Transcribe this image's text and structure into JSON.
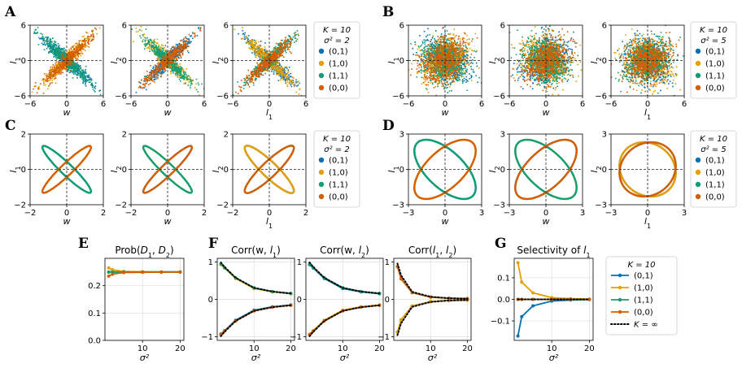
{
  "figure": {
    "panel_letters": [
      "A",
      "B",
      "C",
      "D",
      "E",
      "F",
      "G"
    ]
  },
  "colors": {
    "(0,1)": "#0072b2",
    "(1,0)": "#e69f00",
    "(1,1)": "#119e73",
    "(0,0)": "#d55e00",
    "K_inf": "#000000"
  },
  "legends": {
    "A": {
      "k_label": "K = 10",
      "sigma_label": "σ² = 2",
      "entries": [
        "(0,1)",
        "(1,0)",
        "(1,1)",
        "(0,0)"
      ]
    },
    "B": {
      "k_label": "K = 10",
      "sigma_label": "σ² = 5",
      "entries": [
        "(0,1)",
        "(1,0)",
        "(1,1)",
        "(0,0)"
      ]
    },
    "C": {
      "k_label": "K = 10",
      "sigma_label": "σ² = 2",
      "entries": [
        "(0,1)",
        "(1,0)",
        "(1,1)",
        "(0,0)"
      ]
    },
    "D": {
      "k_label": "K = 10",
      "sigma_label": "σ² = 5",
      "entries": [
        "(0,1)",
        "(1,0)",
        "(1,1)",
        "(0,0)"
      ]
    },
    "G": {
      "k_label": "K = 10",
      "entries": [
        "(0,1)",
        "(1,0)",
        "(1,1)",
        "(0,0)",
        "K = ∞"
      ]
    }
  },
  "chart_data": [
    {
      "id": "A1",
      "panel": "A",
      "type": "scatter",
      "xlabel": "w",
      "ylabel": "l1",
      "xticks": [
        "−6",
        "0",
        "6"
      ],
      "yticks": [
        "−6",
        "0",
        "6"
      ],
      "xlim": [
        -6,
        6
      ],
      "ylim": [
        -6,
        6
      ],
      "sigma2": 2,
      "slopes": {
        "(0,1)": -1,
        "(1,0)": 1,
        "(1,1)": -1,
        "(0,0)": 1
      }
    },
    {
      "id": "A2",
      "panel": "A",
      "type": "scatter",
      "xlabel": "w",
      "ylabel": "l2",
      "xticks": [
        "−6",
        "0",
        "6"
      ],
      "yticks": [
        "−6",
        "0",
        "6"
      ],
      "xlim": [
        -6,
        6
      ],
      "ylim": [
        -6,
        6
      ],
      "sigma2": 2,
      "slopes": {
        "(0,1)": 1,
        "(1,0)": -1,
        "(1,1)": -1,
        "(0,0)": 1
      }
    },
    {
      "id": "A3",
      "panel": "A",
      "type": "scatter",
      "xlabel": "l1",
      "ylabel": "l2",
      "xticks": [
        "−6",
        "0",
        "6"
      ],
      "yticks": [
        "−6",
        "0",
        "6"
      ],
      "xlim": [
        -6,
        6
      ],
      "ylim": [
        -6,
        6
      ],
      "sigma2": 2,
      "slopes": {
        "(0,1)": -1,
        "(1,0)": -1,
        "(1,1)": 1,
        "(0,0)": 1
      }
    },
    {
      "id": "B1",
      "panel": "B",
      "type": "scatter",
      "xlabel": "w",
      "ylabel": "l1",
      "xticks": [
        "−6",
        "0",
        "6"
      ],
      "yticks": [
        "−6",
        "0",
        "6"
      ],
      "xlim": [
        -6,
        6
      ],
      "ylim": [
        -6,
        6
      ],
      "sigma2": 5,
      "slopes": {
        "(0,1)": -1,
        "(1,0)": 1,
        "(1,1)": -1,
        "(0,0)": 1
      }
    },
    {
      "id": "B2",
      "panel": "B",
      "type": "scatter",
      "xlabel": "w",
      "ylabel": "l2",
      "xticks": [
        "−6",
        "0",
        "6"
      ],
      "yticks": [
        "−6",
        "0",
        "6"
      ],
      "xlim": [
        -6,
        6
      ],
      "ylim": [
        -6,
        6
      ],
      "sigma2": 5,
      "slopes": {
        "(0,1)": 1,
        "(1,0)": -1,
        "(1,1)": -1,
        "(0,0)": 1
      }
    },
    {
      "id": "B3",
      "panel": "B",
      "type": "scatter",
      "xlabel": "l1",
      "ylabel": "l2",
      "xticks": [
        "−6",
        "0",
        "6"
      ],
      "yticks": [
        "−6",
        "0",
        "6"
      ],
      "xlim": [
        -6,
        6
      ],
      "ylim": [
        -6,
        6
      ],
      "sigma2": 5,
      "slopes": {
        "(0,1)": -1,
        "(1,0)": -1,
        "(1,1)": 1,
        "(0,0)": 1
      }
    },
    {
      "id": "C1",
      "panel": "C",
      "type": "line",
      "xlabel": "w",
      "ylabel": "l1",
      "xticks": [
        "−2",
        "0",
        "2"
      ],
      "yticks": [
        "−2",
        "0",
        "2"
      ],
      "xlim": [
        -2,
        2
      ],
      "ylim": [
        -2,
        2
      ],
      "ellipses": {
        "(0,1)": {
          "major": 1.85,
          "minor": 0.32,
          "dir": -1
        },
        "(1,0)": {
          "major": 1.85,
          "minor": 0.32,
          "dir": 1
        },
        "(1,1)": {
          "major": 1.85,
          "minor": 0.32,
          "dir": -1
        },
        "(0,0)": {
          "major": 1.85,
          "minor": 0.32,
          "dir": 1
        }
      }
    },
    {
      "id": "C2",
      "panel": "C",
      "type": "line",
      "xlabel": "w",
      "ylabel": "l2",
      "xticks": [
        "−2",
        "0",
        "2"
      ],
      "yticks": [
        "−2",
        "0",
        "2"
      ],
      "xlim": [
        -2,
        2
      ],
      "ylim": [
        -2,
        2
      ],
      "ellipses": {
        "(0,1)": {
          "major": 1.85,
          "minor": 0.32,
          "dir": 1
        },
        "(1,0)": {
          "major": 1.85,
          "minor": 0.32,
          "dir": -1
        },
        "(1,1)": {
          "major": 1.85,
          "minor": 0.32,
          "dir": -1
        },
        "(0,0)": {
          "major": 1.85,
          "minor": 0.32,
          "dir": 1
        }
      }
    },
    {
      "id": "C3",
      "panel": "C",
      "type": "line",
      "xlabel": "l1",
      "ylabel": "l2",
      "xticks": [
        "−2",
        "0",
        "2"
      ],
      "yticks": [
        "−2",
        "0",
        "2"
      ],
      "xlim": [
        -2,
        2
      ],
      "ylim": [
        -2,
        2
      ],
      "ellipses": {
        "(0,1)": {
          "major": 1.85,
          "minor": 0.42,
          "dir": -1
        },
        "(1,0)": {
          "major": 1.85,
          "minor": 0.42,
          "dir": -1
        },
        "(1,1)": {
          "major": 1.85,
          "minor": 0.42,
          "dir": 1
        },
        "(0,0)": {
          "major": 1.85,
          "minor": 0.42,
          "dir": 1
        }
      }
    },
    {
      "id": "D1",
      "panel": "D",
      "type": "line",
      "xlabel": "w",
      "ylabel": "l1",
      "xticks": [
        "−3",
        "0",
        "3"
      ],
      "yticks": [
        "−3",
        "0",
        "3"
      ],
      "xlim": [
        -3,
        3
      ],
      "ylim": [
        -3,
        3
      ],
      "ellipses": {
        "(0,1)": {
          "major": 3.2,
          "minor": 1.55,
          "dir": -1
        },
        "(1,0)": {
          "major": 3.2,
          "minor": 1.55,
          "dir": 1
        },
        "(1,1)": {
          "major": 3.2,
          "minor": 1.55,
          "dir": -1
        },
        "(0,0)": {
          "major": 3.2,
          "minor": 1.55,
          "dir": 1
        }
      }
    },
    {
      "id": "D2",
      "panel": "D",
      "type": "line",
      "xlabel": "w",
      "ylabel": "l2",
      "xticks": [
        "−3",
        "0",
        "3"
      ],
      "yticks": [
        "−3",
        "0",
        "3"
      ],
      "xlim": [
        -3,
        3
      ],
      "ylim": [
        -3,
        3
      ],
      "ellipses": {
        "(0,1)": {
          "major": 3.2,
          "minor": 1.55,
          "dir": 1
        },
        "(1,0)": {
          "major": 3.2,
          "minor": 1.55,
          "dir": -1
        },
        "(1,1)": {
          "major": 3.2,
          "minor": 1.55,
          "dir": -1
        },
        "(0,0)": {
          "major": 3.2,
          "minor": 1.55,
          "dir": 1
        }
      }
    },
    {
      "id": "D3",
      "panel": "D",
      "type": "line",
      "xlabel": "l1",
      "ylabel": "l2",
      "xticks": [
        "−3",
        "0",
        "3"
      ],
      "yticks": [
        "−3",
        "0",
        "3"
      ],
      "xlim": [
        -3,
        3
      ],
      "ylim": [
        -3,
        3
      ],
      "ellipses": {
        "(0,1)": {
          "major": 2.45,
          "minor": 2.15,
          "dir": -1
        },
        "(1,0)": {
          "major": 2.45,
          "minor": 2.15,
          "dir": -1
        },
        "(1,1)": {
          "major": 2.45,
          "minor": 2.15,
          "dir": 1
        },
        "(0,0)": {
          "major": 2.45,
          "minor": 2.15,
          "dir": 1
        }
      }
    },
    {
      "id": "E",
      "panel": "E",
      "type": "line",
      "title": "Prob(D1, D2)",
      "xlabel": "σ²",
      "xlim": [
        0,
        21
      ],
      "ylim": [
        0,
        0.3
      ],
      "xticks": [
        10,
        20
      ],
      "yticks": [
        0.0,
        0.1,
        0.2
      ],
      "ytick_labels": [
        "0.0",
        "0.1",
        "0.2"
      ],
      "grid": true,
      "x": [
        1,
        2,
        5,
        10,
        15,
        20
      ],
      "series": [
        {
          "name": "(0,1)",
          "values": [
            0.25,
            0.25,
            0.25,
            0.25,
            0.25,
            0.25
          ]
        },
        {
          "name": "(1,0)",
          "values": [
            0.265,
            0.258,
            0.252,
            0.251,
            0.25,
            0.25
          ]
        },
        {
          "name": "(1,1)",
          "values": [
            0.25,
            0.25,
            0.25,
            0.25,
            0.25,
            0.25
          ]
        },
        {
          "name": "(0,0)",
          "values": [
            0.235,
            0.242,
            0.248,
            0.249,
            0.25,
            0.25
          ]
        }
      ]
    },
    {
      "id": "F1",
      "panel": "F",
      "type": "line",
      "title": "Corr(w, l1)",
      "xlabel": "σ²",
      "xlim": [
        0,
        21
      ],
      "ylim": [
        -1.1,
        1.1
      ],
      "xticks": [
        10,
        20
      ],
      "yticks": [
        -1,
        0,
        1
      ],
      "ytick_labels": [
        "−1",
        "0",
        "1"
      ],
      "grid": true,
      "x": [
        1,
        2,
        5,
        10,
        15,
        20
      ],
      "series": [
        {
          "name": "(0,1)",
          "values": [
            -0.93,
            -0.84,
            -0.56,
            -0.29,
            -0.2,
            -0.15
          ]
        },
        {
          "name": "(1,0)",
          "values": [
            0.93,
            0.84,
            0.56,
            0.29,
            0.2,
            0.15
          ]
        },
        {
          "name": "(1,1)",
          "values": [
            0.95,
            0.85,
            0.58,
            0.31,
            0.21,
            0.16
          ]
        },
        {
          "name": "(0,0)",
          "values": [
            -0.95,
            -0.85,
            -0.58,
            -0.31,
            -0.21,
            -0.16
          ]
        },
        {
          "name": "K = ∞",
          "values": [
            0.99,
            0.87,
            0.58,
            0.31,
            0.21,
            0.16
          ]
        },
        {
          "name": "K = ∞",
          "values": [
            -0.99,
            -0.87,
            -0.58,
            -0.31,
            -0.21,
            -0.16
          ]
        }
      ]
    },
    {
      "id": "F2",
      "panel": "F",
      "type": "line",
      "title": "Corr(w, l2)",
      "xlabel": "σ²",
      "xlim": [
        0,
        21
      ],
      "ylim": [
        -1.1,
        1.1
      ],
      "xticks": [
        10,
        20
      ],
      "yticks": [
        -1,
        0,
        1
      ],
      "ytick_labels": [
        "−1",
        "0",
        "1"
      ],
      "grid": true,
      "x": [
        1,
        2,
        5,
        10,
        15,
        20
      ],
      "series": [
        {
          "name": "(0,1)",
          "values": [
            0.93,
            0.84,
            0.56,
            0.29,
            0.2,
            0.15
          ]
        },
        {
          "name": "(1,0)",
          "values": [
            -0.93,
            -0.84,
            -0.56,
            -0.29,
            -0.2,
            -0.15
          ]
        },
        {
          "name": "(1,1)",
          "values": [
            0.95,
            0.85,
            0.58,
            0.31,
            0.21,
            0.16
          ]
        },
        {
          "name": "(0,0)",
          "values": [
            -0.95,
            -0.85,
            -0.58,
            -0.31,
            -0.21,
            -0.16
          ]
        },
        {
          "name": "K = ∞",
          "values": [
            0.99,
            0.87,
            0.58,
            0.31,
            0.21,
            0.16
          ]
        },
        {
          "name": "K = ∞",
          "values": [
            -0.99,
            -0.87,
            -0.58,
            -0.31,
            -0.21,
            -0.16
          ]
        }
      ]
    },
    {
      "id": "F3",
      "panel": "F",
      "type": "line",
      "title": "Corr(l1, l2)",
      "xlabel": "σ²",
      "xlim": [
        0,
        21
      ],
      "ylim": [
        -1.1,
        1.1
      ],
      "xticks": [
        10,
        20
      ],
      "yticks": [
        -1,
        0,
        1
      ],
      "ytick_labels": [
        "−1",
        "0",
        "1"
      ],
      "grid": true,
      "x": [
        1,
        2,
        5,
        10,
        15,
        20
      ],
      "series": [
        {
          "name": "(0,1)",
          "values": [
            -0.88,
            -0.55,
            -0.18,
            -0.06,
            -0.03,
            -0.02
          ]
        },
        {
          "name": "(1,0)",
          "values": [
            -0.88,
            -0.55,
            -0.18,
            -0.06,
            -0.03,
            -0.02
          ]
        },
        {
          "name": "(1,1)",
          "values": [
            0.88,
            0.55,
            0.18,
            0.06,
            0.03,
            0.02
          ]
        },
        {
          "name": "(0,0)",
          "values": [
            0.88,
            0.55,
            0.18,
            0.06,
            0.03,
            0.02
          ]
        },
        {
          "name": "K = ∞",
          "values": [
            0.96,
            0.64,
            0.2,
            0.07,
            0.03,
            0.02
          ]
        },
        {
          "name": "K = ∞",
          "values": [
            -0.96,
            -0.64,
            -0.2,
            -0.07,
            -0.03,
            -0.02
          ]
        }
      ]
    },
    {
      "id": "G",
      "panel": "G",
      "type": "line",
      "title": "Selectivity of l1",
      "xlabel": "σ²",
      "xlim": [
        0,
        21
      ],
      "ylim": [
        -0.19,
        0.19
      ],
      "xticks": [
        10,
        20
      ],
      "yticks": [
        -0.1,
        0.0,
        0.1
      ],
      "ytick_labels": [
        "−0.1",
        "0.0",
        "0.1"
      ],
      "grid": true,
      "x": [
        1,
        2,
        5,
        10,
        15,
        20
      ],
      "series": [
        {
          "name": "(0,1)",
          "values": [
            -0.17,
            -0.08,
            -0.03,
            -0.008,
            -0.003,
            -0.001
          ]
        },
        {
          "name": "(1,0)",
          "values": [
            0.17,
            0.08,
            0.03,
            0.008,
            0.003,
            0.001
          ]
        },
        {
          "name": "(1,1)",
          "values": [
            0.0,
            0.0,
            0.0,
            0.0,
            0.0,
            0.0
          ]
        },
        {
          "name": "(0,0)",
          "values": [
            0.0,
            0.0,
            0.0,
            0.0,
            0.0,
            0.0
          ]
        },
        {
          "name": "K = ∞",
          "values": [
            0.0,
            0.0,
            0.0,
            0.0,
            0.0,
            0.0
          ]
        }
      ]
    }
  ]
}
